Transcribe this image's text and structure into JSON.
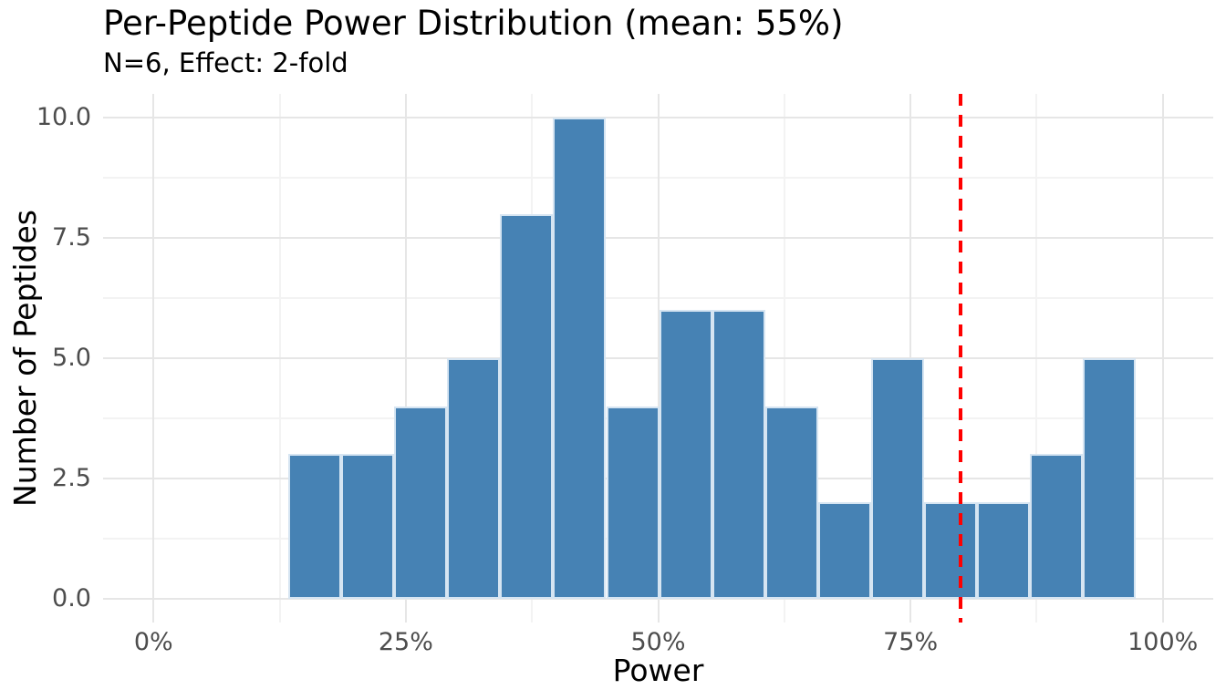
{
  "chart_data": {
    "type": "bar",
    "chart_kind": "histogram",
    "title": "Per-Peptide Power Distribution (mean: 55%)",
    "subtitle": "N=6, Effect: 2-fold",
    "xlabel": "Power",
    "ylabel": "Number of Peptides",
    "x_unit": "percent",
    "bin_start": 13.35,
    "bin_width": 5.25,
    "bin_edges": [
      13.35,
      18.6,
      23.85,
      29.1,
      34.35,
      39.6,
      44.85,
      50.1,
      55.35,
      60.6,
      65.85,
      71.1,
      76.35,
      81.6,
      86.85,
      92.1,
      97.35
    ],
    "counts": [
      3,
      3,
      4,
      5,
      8,
      10,
      4,
      6,
      6,
      4,
      2,
      5,
      2,
      2,
      3,
      5
    ],
    "x_tick_labels": [
      "0%",
      "25%",
      "50%",
      "75%",
      "100%"
    ],
    "x_tick_values": [
      0,
      25,
      50,
      75,
      100
    ],
    "y_tick_labels": [
      "0.0",
      "2.5",
      "5.0",
      "7.5",
      "10.0"
    ],
    "y_tick_values": [
      0,
      2.5,
      5,
      7.5,
      10
    ],
    "x_minor_ticks": [
      12.5,
      37.5,
      62.5,
      87.5
    ],
    "y_minor_ticks": [
      1.25,
      3.75,
      6.25,
      8.75
    ],
    "xlim": [
      -5,
      105
    ],
    "ylim": [
      -0.5,
      10.5
    ],
    "grid": true,
    "legend": false,
    "reference_line": {
      "x": 80,
      "orientation": "vertical",
      "style": "dashed",
      "color": "#ff0000"
    },
    "colors": {
      "bar_fill": "#4682b4",
      "bar_edge": "#d6e5f2",
      "grid_major": "#e6e6e6",
      "grid_minor": "#f3f3f3",
      "tick_label": "#4d4d4d",
      "text": "#000000",
      "background": "#ffffff"
    }
  }
}
